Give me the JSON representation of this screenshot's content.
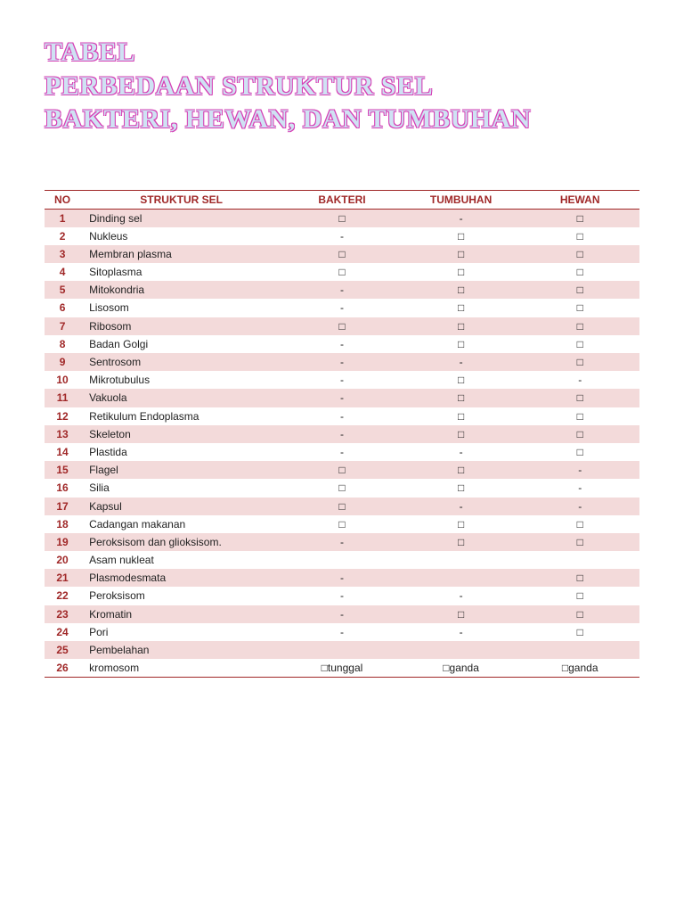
{
  "title_lines": [
    "TABEL",
    "PERBEDAAN STRUKTUR SEL",
    "BAKTERI, HEWAN, DAN TUMBUHAN"
  ],
  "table": {
    "type": "table",
    "header_color": "#a02828",
    "stripe_color": "#f3dada",
    "background_color": "#ffffff",
    "font_size": 12,
    "columns": [
      "NO",
      "STRUKTUR SEL",
      "BAKTERI",
      "TUMBUHAN",
      "HEWAN"
    ],
    "rows": [
      {
        "no": "1",
        "name": "Dinding sel",
        "b": "□",
        "t": "-",
        "h": "□"
      },
      {
        "no": "2",
        "name": "Nukleus",
        "b": "-",
        "t": "□",
        "h": "□"
      },
      {
        "no": "3",
        "name": "Membran plasma",
        "b": "□",
        "t": "□",
        "h": "□"
      },
      {
        "no": "4",
        "name": "Sitoplasma",
        "b": "□",
        "t": "□",
        "h": "□"
      },
      {
        "no": "5",
        "name": "Mitokondria",
        "b": "-",
        "t": "□",
        "h": "□"
      },
      {
        "no": "6",
        "name": "Lisosom",
        "b": "-",
        "t": "□",
        "h": "□"
      },
      {
        "no": "7",
        "name": "Ribosom",
        "b": "□",
        "t": "□",
        "h": "□"
      },
      {
        "no": "8",
        "name": "Badan Golgi",
        "b": "-",
        "t": "□",
        "h": "□"
      },
      {
        "no": "9",
        "name": "Sentrosom",
        "b": "-",
        "t": "-",
        "h": "□"
      },
      {
        "no": "10",
        "name": "Mikrotubulus",
        "b": "-",
        "t": "□",
        "h": "-"
      },
      {
        "no": "11",
        "name": "Vakuola",
        "b": "-",
        "t": "□",
        "h": "□"
      },
      {
        "no": "12",
        "name": "Retikulum Endoplasma",
        "b": "-",
        "t": "□",
        "h": "□"
      },
      {
        "no": "13",
        "name": "Skeleton",
        "b": "-",
        "t": "□",
        "h": "□"
      },
      {
        "no": "14",
        "name": "Plastida",
        "b": "-",
        "t": "-",
        "h": "□"
      },
      {
        "no": "15",
        "name": "Flagel",
        "b": "□",
        "t": "□",
        "h": "-"
      },
      {
        "no": "16",
        "name": "Silia",
        "b": "□",
        "t": "□",
        "h": "-"
      },
      {
        "no": "17",
        "name": "Kapsul",
        "b": "□",
        "t": "-",
        "h": "-"
      },
      {
        "no": "18",
        "name": "Cadangan makanan",
        "b": "□",
        "t": "□",
        "h": "□"
      },
      {
        "no": "19",
        "name": "Peroksisom dan glioksisom.",
        "b": "-",
        "t": "□",
        "h": "□"
      },
      {
        "no": "20",
        "name": "Asam nukleat",
        "b": "",
        "t": "",
        "h": ""
      },
      {
        "no": "21",
        "name": "Plasmodesmata",
        "b": "-",
        "t": "",
        "h": "□"
      },
      {
        "no": "22",
        "name": "Peroksisom",
        "b": "-",
        "t": "-",
        "h": "□"
      },
      {
        "no": "23",
        "name": "Kromatin",
        "b": "-",
        "t": "□",
        "h": "□"
      },
      {
        "no": "24",
        "name": "Pori",
        "b": "-",
        "t": "-",
        "h": "□"
      },
      {
        "no": "25",
        "name": "Pembelahan",
        "b": "",
        "t": "",
        "h": ""
      },
      {
        "no": "26",
        "name": "kromosom",
        "b": "□tunggal",
        "t": "□ganda",
        "h": "□ganda"
      }
    ]
  }
}
